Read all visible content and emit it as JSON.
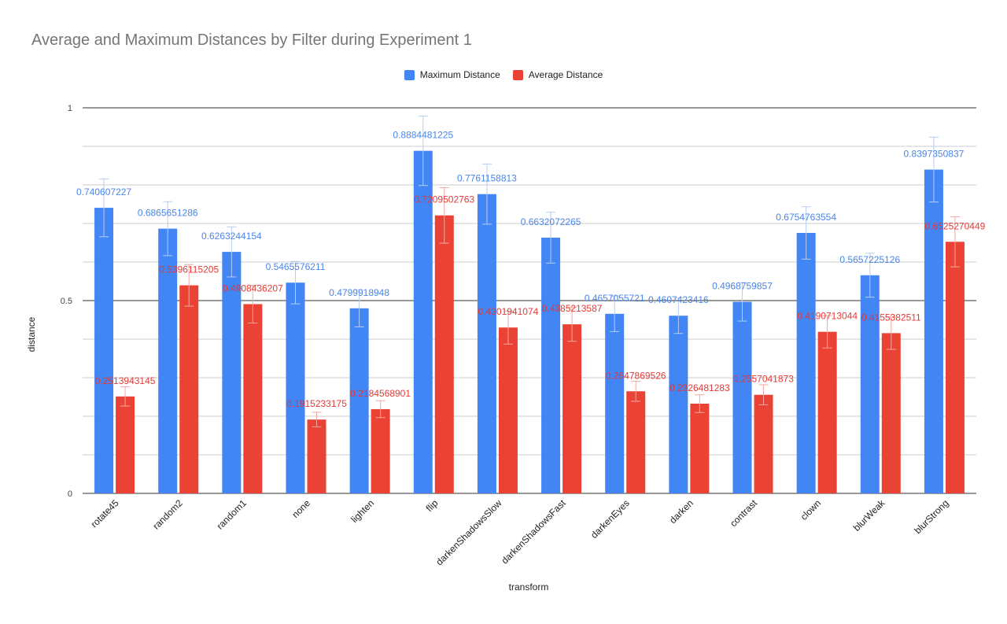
{
  "chart_data": {
    "type": "bar",
    "title": "Average and Maximum Distances by Filter during Experiment 1",
    "xlabel": "transform",
    "ylabel": "distance",
    "ylim": [
      0,
      1
    ],
    "yticks": [
      "0",
      "0.5",
      "1"
    ],
    "grid": true,
    "legend_position": "top",
    "categories": [
      "rotate45",
      "random2",
      "random1",
      "none",
      "lighten",
      "flip",
      "darkenShadowsSlow",
      "darkenShadowsFast",
      "darkenEyes",
      "darken",
      "contrast",
      "clown",
      "blurWeak",
      "blurStrong"
    ],
    "series": [
      {
        "name": "Maximum Distance",
        "color": "#4285f4",
        "label_color": "#4a86e8",
        "values": [
          0.740607227,
          0.6865651286,
          0.6263244154,
          0.5465576211,
          0.4799918948,
          0.8884481225,
          0.7761158813,
          0.6632072265,
          0.4657055721,
          0.4607423416,
          0.4968759857,
          0.6754763554,
          0.5657225126,
          0.8397350837
        ],
        "labels": [
          "0.740607227",
          "0.6865651286",
          "0.6263244154",
          "0.5465576211",
          "0.4799918948",
          "0.8884481225",
          "0.7761158813",
          "0.6632072265",
          "0.4657055721",
          "0.4607423416",
          "0.4968759857",
          "0.6754763554",
          "0.5657225126",
          "0.8397350837"
        ],
        "error": [
          0.075,
          0.07,
          0.065,
          0.055,
          0.048,
          0.09,
          0.078,
          0.066,
          0.046,
          0.046,
          0.05,
          0.068,
          0.057,
          0.084
        ]
      },
      {
        "name": "Average Distance",
        "color": "#ea4335",
        "label_color": "#e53935",
        "values": [
          0.2513943145,
          0.5396115205,
          0.4908436207,
          0.1915233175,
          0.2184568901,
          0.7209502763,
          0.4301941074,
          0.4385213587,
          0.2647869526,
          0.2326481283,
          0.2557041873,
          0.4190713044,
          0.4155382511,
          0.6525270449
        ],
        "labels": [
          "0.2513943145",
          "0.5396115205",
          "0.4908436207",
          "0.1915233175",
          "0.2184568901",
          "0.7209502763",
          "0.4301941074",
          "0.4385213587",
          "0.2647869526",
          "0.2326481283",
          "0.2557041873",
          "0.4190713044",
          "0.4155382511",
          "0.6525270449"
        ],
        "error": [
          0.025,
          0.054,
          0.049,
          0.019,
          0.022,
          0.072,
          0.043,
          0.044,
          0.026,
          0.023,
          0.026,
          0.042,
          0.042,
          0.065
        ]
      }
    ]
  }
}
